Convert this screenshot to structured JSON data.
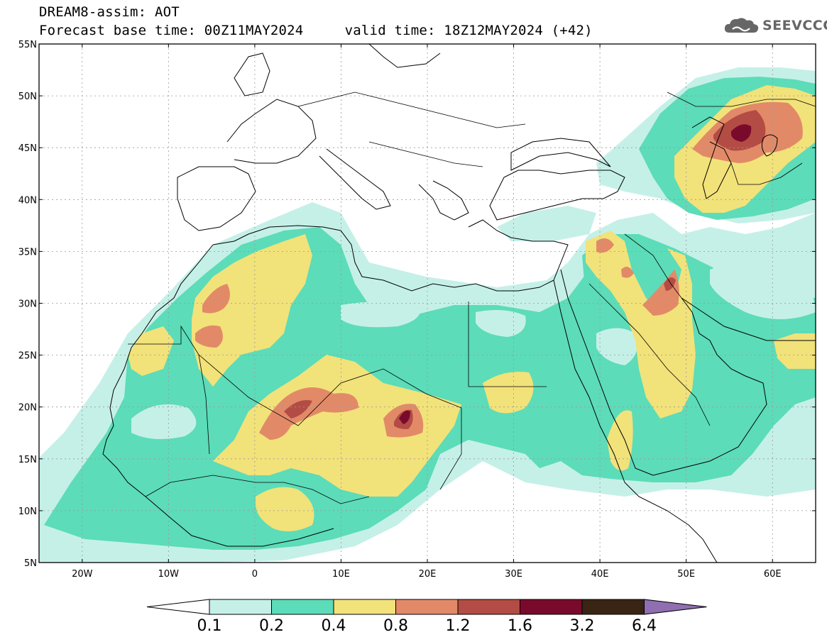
{
  "header": {
    "title_line1": "DREAM8-assim: AOT",
    "title_line2": "Forecast base time: 00Z11MAY2024     valid time: 18Z12MAY2024 (+42)",
    "logo_text": "SEEVCCC"
  },
  "map": {
    "projection": "lat-lon",
    "lon_range": [
      -25,
      65
    ],
    "lat_range": [
      5,
      55
    ],
    "gridlines": true,
    "lat_ticks": [
      {
        "value": 55,
        "label": "55N"
      },
      {
        "value": 50,
        "label": "50N"
      },
      {
        "value": 45,
        "label": "45N"
      },
      {
        "value": 40,
        "label": "40N"
      },
      {
        "value": 35,
        "label": "35N"
      },
      {
        "value": 30,
        "label": "30N"
      },
      {
        "value": 25,
        "label": "25N"
      },
      {
        "value": 20,
        "label": "20N"
      },
      {
        "value": 15,
        "label": "15N"
      },
      {
        "value": 10,
        "label": "10N"
      },
      {
        "value": 5,
        "label": "5N"
      }
    ],
    "lon_ticks": [
      {
        "value": -20,
        "label": "20W"
      },
      {
        "value": -10,
        "label": "10W"
      },
      {
        "value": 0,
        "label": "0"
      },
      {
        "value": 10,
        "label": "10E"
      },
      {
        "value": 20,
        "label": "20E"
      },
      {
        "value": 30,
        "label": "30E"
      },
      {
        "value": 40,
        "label": "40E"
      },
      {
        "value": 50,
        "label": "50E"
      },
      {
        "value": 60,
        "label": "60E"
      }
    ],
    "field": "AOT",
    "levels": [
      {
        "min": 0.1,
        "max": 0.2,
        "color": "#c5f0e8"
      },
      {
        "min": 0.2,
        "max": 0.4,
        "color": "#5cdcb8"
      },
      {
        "min": 0.4,
        "max": 0.8,
        "color": "#f2e27a"
      },
      {
        "min": 0.8,
        "max": 1.2,
        "color": "#e28a68"
      },
      {
        "min": 1.2,
        "max": 1.6,
        "color": "#b34c44"
      },
      {
        "min": 1.6,
        "max": 3.2,
        "color": "#7a0a2c"
      },
      {
        "min": 3.2,
        "max": 6.4,
        "color": "#3a2414"
      }
    ],
    "over_color": "#8f6fb0",
    "under_color": "#ffffff"
  },
  "colorbar": {
    "labels": [
      "0.1",
      "0.2",
      "0.4",
      "0.8",
      "1.2",
      "1.6",
      "3.2",
      "6.4"
    ],
    "colors": [
      "#c5f0e8",
      "#5cdcb8",
      "#f2e27a",
      "#e28a68",
      "#b34c44",
      "#7a0a2c",
      "#3a2414"
    ],
    "under_color": "#ffffff",
    "over_color": "#8f6fb0"
  }
}
